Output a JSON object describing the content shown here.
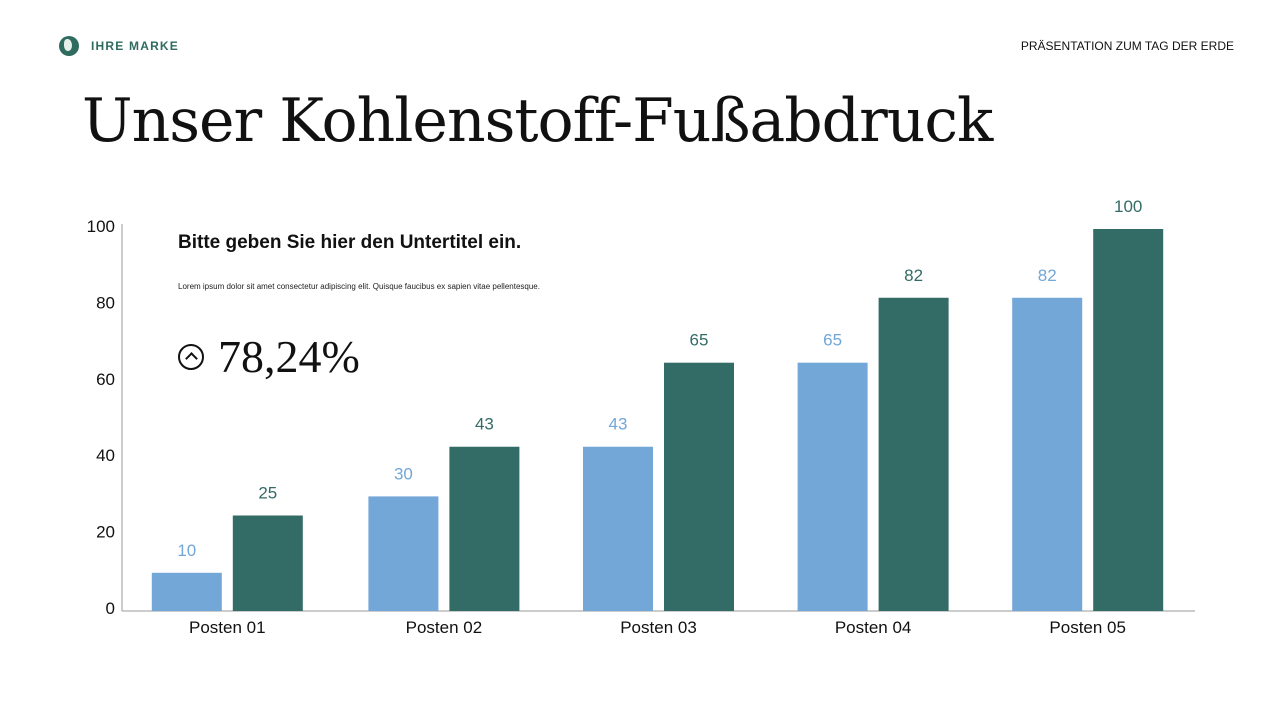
{
  "brand": {
    "name": "IHRE MARKE",
    "logo_icon": "globe-icon"
  },
  "header_right": "PRÄSENTATION ZUM TAG DER ERDE",
  "title": "Unser Kohlenstoff-Fußabdruck",
  "subtitle": "Bitte geben Sie hier den Untertitel ein.",
  "body_text": "Lorem ipsum dolor sit amet consectetur adipiscing elit. Quisque faucibus ex sapien vitae pellentesque.",
  "stat": {
    "icon": "chevron-up-circle-icon",
    "value": "78,24%"
  },
  "chart_data": {
    "type": "bar",
    "categories": [
      "Posten 01",
      "Posten 02",
      "Posten 03",
      "Posten 04",
      "Posten 05"
    ],
    "series": [
      {
        "values": [
          10,
          30,
          43,
          65,
          82
        ],
        "color": "#72a7d7"
      },
      {
        "values": [
          25,
          43,
          65,
          82,
          100
        ],
        "color": "#336b66"
      }
    ],
    "ylim": [
      0,
      100
    ],
    "yticks": [
      0,
      20,
      40,
      60,
      80,
      100
    ],
    "grid": false,
    "data_labels": true
  }
}
